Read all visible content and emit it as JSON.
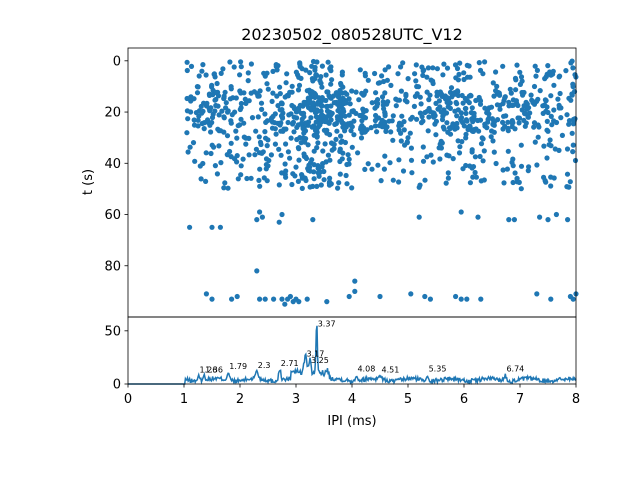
{
  "chart_data": [
    {
      "type": "scatter",
      "title": "20230502_080528UTC_V12",
      "xlabel": "",
      "ylabel": "t (s)",
      "xlim": [
        0,
        8
      ],
      "ylim": [
        100,
        -5
      ],
      "yticks": [
        "0",
        "20",
        "40",
        "60",
        "80"
      ],
      "color": "#1f77b4",
      "generator": {
        "seed": 7,
        "dense_rows": [
          0,
          50
        ],
        "count": 1100
      },
      "sparse_points": [
        [
          1.1,
          65
        ],
        [
          1.5,
          65
        ],
        [
          1.65,
          65
        ],
        [
          2.35,
          59
        ],
        [
          2.4,
          61
        ],
        [
          2.3,
          62
        ],
        [
          2.75,
          60
        ],
        [
          2.7,
          63
        ],
        [
          3.3,
          62
        ],
        [
          5.2,
          61
        ],
        [
          5.95,
          59
        ],
        [
          6.25,
          61
        ],
        [
          6.8,
          62
        ],
        [
          6.9,
          62
        ],
        [
          7.35,
          61
        ],
        [
          7.5,
          62
        ],
        [
          7.65,
          60
        ],
        [
          7.85,
          62
        ],
        [
          2.3,
          82
        ],
        [
          4.05,
          86
        ],
        [
          4.05,
          90
        ],
        [
          1.4,
          91
        ],
        [
          1.5,
          93
        ],
        [
          1.85,
          93
        ],
        [
          1.95,
          92
        ],
        [
          2.35,
          93
        ],
        [
          2.6,
          93
        ],
        [
          2.75,
          93
        ],
        [
          2.85,
          93
        ],
        [
          2.9,
          92
        ],
        [
          2.95,
          94
        ],
        [
          3.0,
          93
        ],
        [
          2.8,
          95
        ],
        [
          3.05,
          94
        ],
        [
          3.2,
          93
        ],
        [
          3.55,
          94
        ],
        [
          3.95,
          92
        ],
        [
          4.5,
          92
        ],
        [
          5.05,
          91
        ],
        [
          5.3,
          92
        ],
        [
          5.4,
          93
        ],
        [
          5.85,
          92
        ],
        [
          6.05,
          93
        ],
        [
          6.3,
          93
        ],
        [
          7.3,
          91
        ],
        [
          7.55,
          93
        ],
        [
          7.9,
          92
        ],
        [
          7.95,
          93
        ],
        [
          8.0,
          91
        ],
        [
          2.45,
          93
        ],
        [
          5.95,
          93
        ]
      ]
    },
    {
      "type": "line",
      "xlabel": "IPI (ms)",
      "ylabel": "",
      "xlim": [
        0,
        8
      ],
      "ylim": [
        0,
        63
      ],
      "xticks": [
        "0",
        "1",
        "2",
        "3",
        "4",
        "5",
        "6",
        "7",
        "8"
      ],
      "yticks": [
        "0",
        "50"
      ],
      "color": "#1f77b4",
      "peaks": [
        {
          "x": 1.26,
          "y": 9,
          "label": "1.26"
        },
        {
          "x": 1.36,
          "y": 9,
          "label": "1.36"
        },
        {
          "x": 1.79,
          "y": 12,
          "label": "1.79"
        },
        {
          "x": 2.3,
          "y": 13,
          "label": "2.3"
        },
        {
          "x": 2.71,
          "y": 15,
          "label": "2.71"
        },
        {
          "x": 3.17,
          "y": 24,
          "label": "3.17"
        },
        {
          "x": 3.25,
          "y": 18,
          "label": "3.25"
        },
        {
          "x": 3.37,
          "y": 52,
          "label": "3.37"
        },
        {
          "x": 4.08,
          "y": 10,
          "label": "4.08"
        },
        {
          "x": 4.51,
          "y": 9,
          "label": "4.51"
        },
        {
          "x": 5.35,
          "y": 10,
          "label": "5.35"
        },
        {
          "x": 6.74,
          "y": 10,
          "label": "6.74"
        }
      ]
    }
  ]
}
